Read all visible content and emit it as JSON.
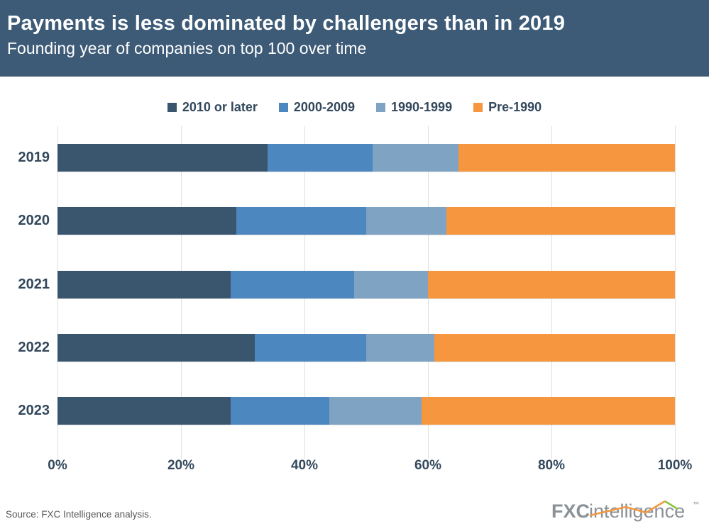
{
  "chart_data": {
    "type": "bar",
    "orientation": "horizontal",
    "stacked": true,
    "title": "Payments is less dominated by challengers than in 2019",
    "subtitle": "Founding year of companies on top 100 over time",
    "categories": [
      "2019",
      "2020",
      "2021",
      "2022",
      "2023"
    ],
    "series": [
      {
        "name": "2010 or later",
        "color": "#3A566F",
        "values": [
          34,
          29,
          28,
          32,
          28
        ]
      },
      {
        "name": "2000-2009",
        "color": "#4C87C0",
        "values": [
          17,
          21,
          20,
          18,
          16
        ]
      },
      {
        "name": "1990-1999",
        "color": "#7EA3C3",
        "values": [
          14,
          13,
          12,
          11,
          15
        ]
      },
      {
        "name": "Pre-1990",
        "color": "#F6973F",
        "values": [
          35,
          37,
          40,
          39,
          41
        ]
      }
    ],
    "x_ticks": [
      "0%",
      "20%",
      "40%",
      "60%",
      "80%",
      "100%"
    ],
    "xlim": [
      0,
      100
    ],
    "x_unit": "percent of top 100 companies",
    "legend_position": "top",
    "grid": "vertical"
  },
  "footer": {
    "source": "Source: FXC Intelligence analysis.",
    "logo_bold": "FXC",
    "logo_rest": "intelligence",
    "logo_tm": "™"
  },
  "colors": {
    "header_bg": "#3D5B77",
    "text_navy": "#33485C",
    "grid": "#DFDFDF",
    "source_gray": "#58595B",
    "logo_gray": "#8A9197",
    "logo_orange": "#F6973F",
    "logo_green": "#8BC53F"
  }
}
